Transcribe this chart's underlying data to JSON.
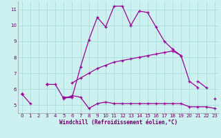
{
  "xlabel": "Windchill (Refroidissement éolien,°C)",
  "bg_color": "#cdf0f0",
  "grid_color": "#b8e8e8",
  "line_color": "#990099",
  "xlim": [
    -0.5,
    23.5
  ],
  "ylim": [
    4.5,
    11.5
  ],
  "xticks": [
    0,
    1,
    2,
    3,
    4,
    5,
    6,
    7,
    8,
    9,
    10,
    11,
    12,
    13,
    14,
    15,
    16,
    17,
    18,
    19,
    20,
    21,
    22,
    23
  ],
  "yticks": [
    5,
    6,
    7,
    8,
    9,
    10,
    11
  ],
  "s1": [
    5.7,
    5.1,
    null,
    6.3,
    6.3,
    5.4,
    5.6,
    5.5,
    4.8,
    5.1,
    5.2,
    5.1,
    5.1,
    5.1,
    5.1,
    5.1,
    5.1,
    5.1,
    5.1,
    5.1,
    4.9,
    4.9,
    4.9,
    4.8
  ],
  "s2": [
    5.7,
    null,
    null,
    6.3,
    null,
    5.5,
    5.5,
    7.4,
    9.1,
    10.5,
    9.9,
    11.2,
    11.2,
    10.0,
    10.9,
    10.8,
    9.9,
    9.0,
    8.5,
    8.1,
    6.5,
    6.1,
    null,
    5.4
  ],
  "s3": [
    5.7,
    null,
    null,
    6.3,
    null,
    null,
    6.4,
    6.7,
    7.0,
    7.3,
    7.5,
    7.7,
    7.8,
    7.9,
    8.0,
    8.1,
    8.2,
    8.3,
    8.4,
    8.1,
    null,
    null,
    null,
    null
  ],
  "s4": [
    5.7,
    null,
    null,
    6.3,
    null,
    5.5,
    5.5,
    null,
    null,
    null,
    null,
    null,
    null,
    null,
    null,
    null,
    null,
    null,
    null,
    null,
    null,
    6.5,
    6.1,
    null
  ]
}
